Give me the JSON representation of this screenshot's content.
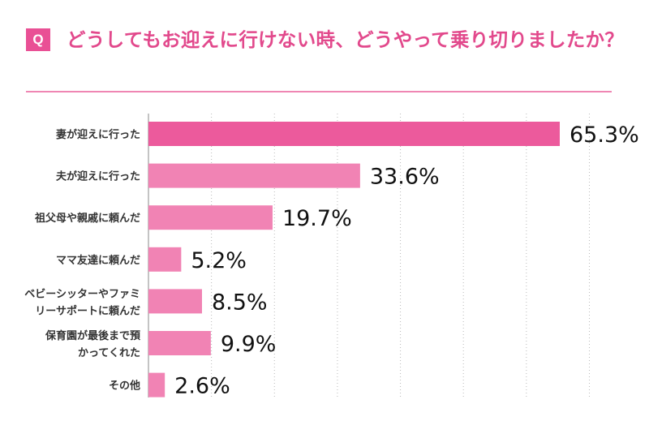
{
  "question": {
    "badge": "Q",
    "text": "どうしてもお迎えに行けない時、どうやって乗り切りましたか？"
  },
  "colors": {
    "accent": "#e95095",
    "bar_top": "#ec5a9c",
    "bar": "#f183b4",
    "grid": "#b9b9b9"
  },
  "chart_data": {
    "type": "bar",
    "orientation": "horizontal",
    "categories": [
      [
        "妻が迎えに行った"
      ],
      [
        "夫が迎えに行った"
      ],
      [
        "祖父母や親戚に頼んだ"
      ],
      [
        "ママ友達に頼んだ"
      ],
      [
        "ベビーシッターやファミ",
        "リーサポートに頼んだ"
      ],
      [
        "保育園が最後まで預",
        "かってくれた"
      ],
      [
        "その他"
      ]
    ],
    "values": [
      65.3,
      33.6,
      19.7,
      5.2,
      8.5,
      9.9,
      2.6
    ],
    "value_labels": [
      "65.3%",
      "33.6%",
      "19.7%",
      "5.2%",
      "8.5%",
      "9.9%",
      "2.6%"
    ],
    "xlim": [
      0,
      70
    ],
    "grid": true,
    "grid_style": "dotted vertical",
    "title": "",
    "xlabel": "",
    "ylabel": ""
  }
}
